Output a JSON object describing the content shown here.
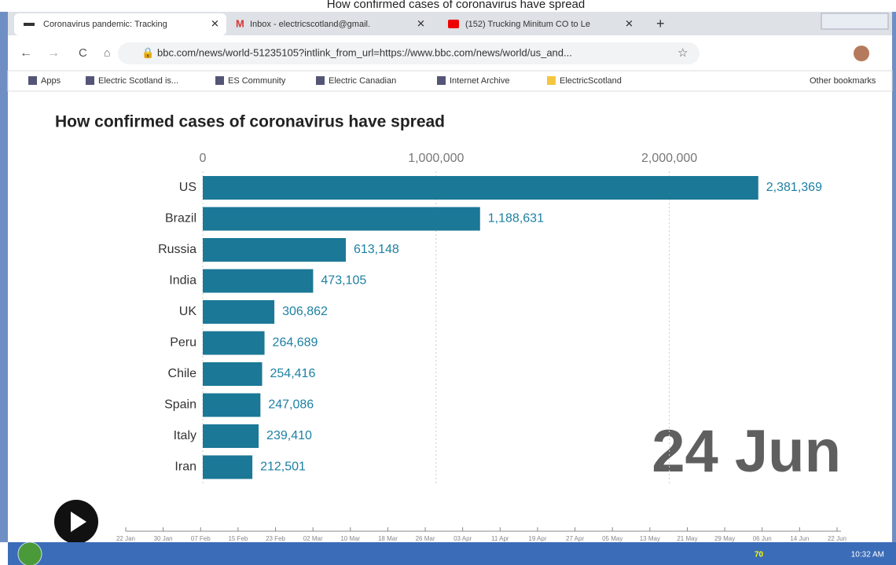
{
  "caption": "How confirmed cases of coronavirus have spread",
  "browser": {
    "tabs": [
      "Coronavirus pandemic: Tracking",
      "Inbox - electricscotland@gmail.",
      "(152) Trucking Minitum CO to Le"
    ],
    "address": "bbc.com/news/world-51235105?intlink_from_url=https://www.bbc.com/news/world/us_and...",
    "bookmarks": [
      "Apps",
      "Electric Scotland is...",
      "ES Community",
      "Electric Canadian",
      "Internet Archive",
      "ElectricScotland"
    ],
    "other_bookmarks": "Other bookmarks"
  },
  "chart_data": {
    "type": "bar",
    "orientation": "horizontal",
    "title": "How confirmed cases of coronavirus have spread",
    "categories": [
      "US",
      "Brazil",
      "Russia",
      "India",
      "UK",
      "Peru",
      "Chile",
      "Spain",
      "Italy",
      "Iran"
    ],
    "values": [
      2381369,
      1188631,
      613148,
      473105,
      306862,
      264689,
      254416,
      247086,
      239410,
      212501
    ],
    "value_labels": [
      "2,381,369",
      "1,188,631",
      "613,148",
      "473,105",
      "306,862",
      "264,689",
      "254,416",
      "247,086",
      "239,410",
      "212,501"
    ],
    "color": "#1b7896",
    "xlim": [
      0,
      2500000
    ],
    "xticks": [
      0,
      {
        "value": 1000000,
        "label": "1,000,000"
      },
      {
        "value": 2000000,
        "label": "2,000,000"
      }
    ],
    "grid": true,
    "annotation": "24 Jun"
  },
  "timeline": {
    "labels": [
      "22 Jan",
      "30 Jan",
      "07 Feb",
      "15 Feb",
      "23 Feb",
      "02 Mar",
      "10 Mar",
      "18 Mar",
      "26 Mar",
      "03 Apr",
      "11 Apr",
      "19 Apr",
      "27 Apr",
      "05 May",
      "13 May",
      "21 May",
      "29 May",
      "06 Jun",
      "14 Jun",
      "22 Jun"
    ]
  },
  "taskbar": {
    "temperature": "70",
    "time": "10:32 AM"
  }
}
